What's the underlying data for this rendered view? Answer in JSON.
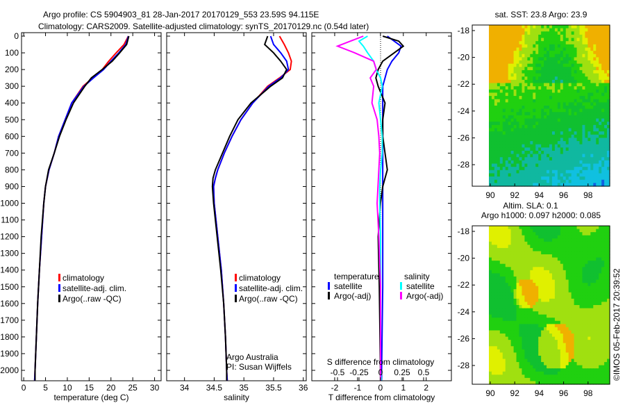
{
  "title_line1": "Argo profile: CS 5904903_81 28-Jan-2017 20170129_553 23.59S 94.115E",
  "title_line2": "Climatology: CARS2009. Satellite-adjusted climatology: synTS_20170129.nc (0.54d later)",
  "side_stamp": "©IMOS 05-Feb-2017 20:39:52",
  "colors": {
    "climatology": "#ff0000",
    "satellite": "#0000ff",
    "argo": "#000000",
    "sal_sat": "#00ffff",
    "sal_argo": "#ff00ff"
  },
  "chart_data": [
    {
      "type": "line",
      "xlabel": "temperature (deg C)",
      "xticks": [
        "0",
        "5",
        "10",
        "15",
        "20",
        "25",
        "30"
      ],
      "xlim": [
        -0.5,
        31.5
      ],
      "ylim": [
        2060,
        0
      ],
      "yticks": [
        "0",
        "100",
        "200",
        "300",
        "400",
        "500",
        "600",
        "700",
        "800",
        "900",
        "1000",
        "1100",
        "1200",
        "1300",
        "1400",
        "1500",
        "1600",
        "1700",
        "1800",
        "1900",
        "2000"
      ],
      "legend": [
        "climatology",
        "satellite-adj. clim.",
        "Argo(..raw -QC)"
      ],
      "depth": [
        0,
        50,
        100,
        150,
        200,
        250,
        300,
        400,
        500,
        600,
        700,
        800,
        900,
        1000,
        1200,
        1400,
        1600,
        1800,
        2000,
        2060
      ],
      "series": [
        {
          "name": "climatology",
          "values": [
            24.0,
            23.0,
            21.2,
            19.5,
            18.0,
            15.8,
            13.6,
            11.0,
            9.5,
            8.0,
            7.0,
            5.8,
            5.0,
            4.6,
            4.1,
            3.6,
            3.2,
            2.9,
            2.6,
            2.5
          ]
        },
        {
          "name": "satellite-adj. clim.",
          "values": [
            24.0,
            23.4,
            21.8,
            20.0,
            18.3,
            16.0,
            13.8,
            11.0,
            9.5,
            8.0,
            7.0,
            5.8,
            5.0,
            4.6,
            4.1,
            3.6,
            3.2,
            2.9,
            2.6,
            2.5
          ]
        },
        {
          "name": "Argo",
          "values": [
            24.1,
            23.6,
            22.0,
            20.3,
            18.0,
            15.5,
            14.0,
            11.4,
            9.7,
            8.2,
            7.0,
            5.7,
            5.0,
            4.6,
            4.0,
            3.6,
            3.2,
            2.9,
            2.6,
            2.6
          ]
        }
      ]
    },
    {
      "type": "line",
      "xlabel": "salinity",
      "xticks": [
        "34",
        "34.5",
        "35",
        "35.5",
        "36"
      ],
      "xlim": [
        33.7,
        36.05
      ],
      "legend": [
        "climatology",
        "satellite-adj. clim.",
        "Argo(..raw -QC)"
      ],
      "annotation": [
        "Argo Australia",
        "PI: Susan Wijffels"
      ],
      "depth": [
        0,
        50,
        100,
        150,
        200,
        250,
        300,
        400,
        500,
        600,
        700,
        800,
        850,
        900,
        1000,
        1200,
        1400,
        1600,
        1800,
        2000,
        2060
      ],
      "series": [
        {
          "name": "climatology",
          "values": [
            35.6,
            35.68,
            35.75,
            35.8,
            35.78,
            35.6,
            35.4,
            35.15,
            34.95,
            34.8,
            34.67,
            34.56,
            34.52,
            34.49,
            34.5,
            34.56,
            34.62,
            34.66,
            34.69,
            34.71,
            34.72
          ]
        },
        {
          "name": "satellite-adj. clim.",
          "values": [
            35.45,
            35.5,
            35.62,
            35.72,
            35.75,
            35.62,
            35.42,
            35.15,
            34.95,
            34.8,
            34.67,
            34.56,
            34.52,
            34.49,
            34.5,
            34.56,
            34.62,
            34.66,
            34.69,
            34.71,
            34.72
          ]
        },
        {
          "name": "Argo",
          "values": [
            35.4,
            35.35,
            35.5,
            35.62,
            35.72,
            35.65,
            35.45,
            35.12,
            34.9,
            34.76,
            34.64,
            34.52,
            34.48,
            34.47,
            34.49,
            34.55,
            34.61,
            34.66,
            34.69,
            34.71,
            34.71
          ]
        }
      ]
    },
    {
      "type": "line",
      "xlabel": "T difference from climatology",
      "xticks": [
        "-2",
        "-1",
        "0",
        "1",
        "2"
      ],
      "xlim": [
        -3,
        3.1
      ],
      "x2label": "S difference from climatology",
      "x2ticks": [
        "-0.5",
        "-0.25",
        "0",
        "0.25",
        "0.5"
      ],
      "legend_titles": [
        "temperature",
        "salinity"
      ],
      "legend": [
        "satellite",
        "Argo(-adj)",
        "satellite",
        "Argo(-adj)"
      ],
      "depth": [
        0,
        30,
        60,
        100,
        150,
        200,
        250,
        300,
        400,
        500,
        600,
        700,
        800,
        900,
        1000,
        1200,
        1500,
        2000,
        2060
      ],
      "series": [
        {
          "name": "T satellite",
          "values": [
            0.3,
            0.6,
            0.9,
            0.8,
            0.5,
            0.3,
            0.2,
            0.1,
            0.1,
            0.1,
            0.1,
            0.1,
            0.1,
            0.1,
            0.1,
            0.1,
            0.1,
            0.05,
            0.05
          ]
        },
        {
          "name": "T Argo(-adj)",
          "values": [
            0.1,
            0.8,
            1.0,
            0.6,
            0.1,
            -0.1,
            -0.2,
            -0.1,
            0.2,
            0.1,
            0.1,
            0.2,
            0.3,
            0.1,
            0.0,
            -0.1,
            -0.05,
            0.0,
            0.0
          ]
        },
        {
          "name": "S satellite",
          "values": [
            -0.15,
            -0.25,
            -0.2,
            -0.15,
            -0.08,
            -0.05,
            0.0,
            0.02,
            -0.02,
            0.0,
            0.02,
            0.02,
            0.0,
            -0.01,
            -0.01,
            0.0,
            0.0,
            0.0,
            0.01
          ]
        },
        {
          "name": "S Argo(-adj)",
          "values": [
            -0.2,
            -0.35,
            -0.5,
            -0.3,
            -0.08,
            -0.05,
            -0.12,
            -0.08,
            -0.1,
            -0.04,
            -0.02,
            -0.01,
            -0.02,
            -0.03,
            -0.04,
            -0.02,
            0.0,
            0.0,
            0.0
          ]
        }
      ]
    },
    {
      "type": "heatmap",
      "title": "sat. SST: 23.8 Argo: 23.9",
      "xticks": [
        "90",
        "92",
        "94",
        "96",
        "98"
      ],
      "yticks": [
        "-18",
        "-20",
        "-22",
        "-24",
        "-26",
        "-28"
      ],
      "xlim": [
        88.7,
        99.8
      ],
      "ylim": [
        -29.6,
        -17.6
      ]
    },
    {
      "type": "heatmap",
      "title_line1": "Altim. SLA: 0.1",
      "title_line2": "Argo h1000: 0.097 h2000: 0.085",
      "xticks": [
        "90",
        "92",
        "94",
        "96",
        "98"
      ],
      "yticks": [
        "-18",
        "-20",
        "-22",
        "-24",
        "-26",
        "-28"
      ],
      "xlim": [
        88.7,
        99.8
      ],
      "ylim": [
        -29.6,
        -17.6
      ]
    }
  ]
}
